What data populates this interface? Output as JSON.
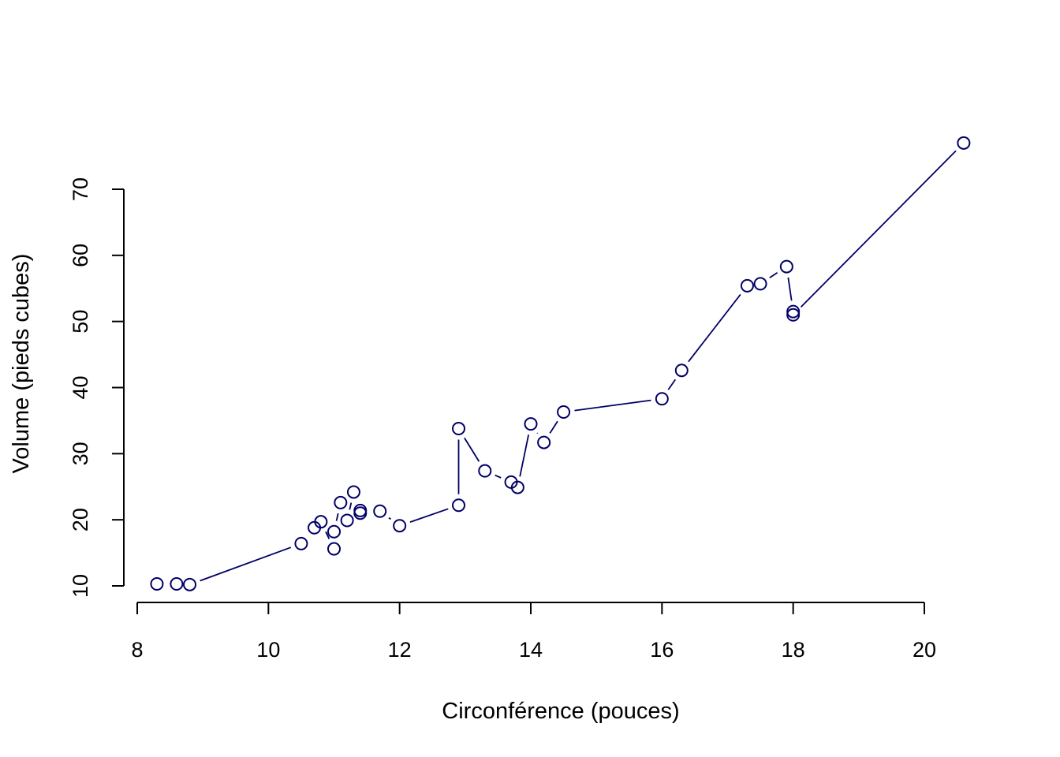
{
  "chart_data": {
    "type": "line",
    "title": "",
    "xlabel": "Circonférence (pouces)",
    "ylabel": "Volume (pieds cubes)",
    "xlim": [
      8,
      20
    ],
    "ylim": [
      10,
      70
    ],
    "xticks": [
      8,
      10,
      12,
      14,
      16,
      18,
      20
    ],
    "yticks": [
      10,
      20,
      30,
      40,
      50,
      60,
      70
    ],
    "grid": false,
    "legend": "none",
    "series_color": "#000066",
    "line_style": "both points and lines",
    "x": [
      8.3,
      8.6,
      8.8,
      10.5,
      10.7,
      10.8,
      11.0,
      11.0,
      11.1,
      11.2,
      11.3,
      11.4,
      11.4,
      11.7,
      12.0,
      12.9,
      12.9,
      13.3,
      13.7,
      13.8,
      14.0,
      14.2,
      14.5,
      16.0,
      16.3,
      17.3,
      17.5,
      17.9,
      18.0,
      18.0,
      20.6
    ],
    "y": [
      10.3,
      10.3,
      10.2,
      16.4,
      18.8,
      19.7,
      15.6,
      18.2,
      22.6,
      19.9,
      24.2,
      21.0,
      21.4,
      21.3,
      19.1,
      22.2,
      33.8,
      27.4,
      25.7,
      24.9,
      34.5,
      31.7,
      36.3,
      38.3,
      42.6,
      55.4,
      55.7,
      58.3,
      51.5,
      51.0,
      77.0
    ]
  }
}
